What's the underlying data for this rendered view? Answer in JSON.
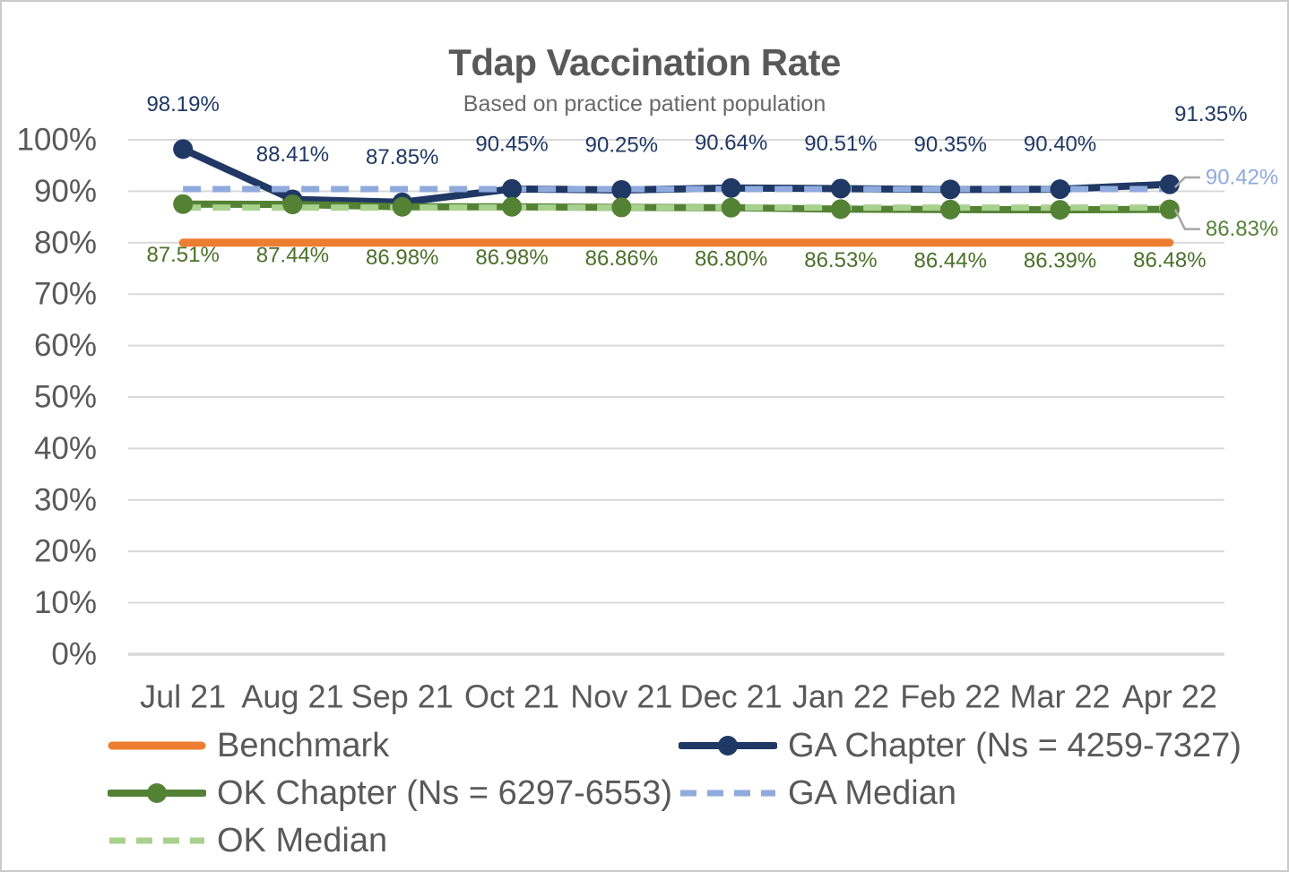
{
  "theme": {
    "background": "#FFFFFF",
    "frame_border": "#C9C9C9",
    "gridline": "#D9D9D9",
    "axis_text": "#595959",
    "title_text": "#595959",
    "subtitle_text": "#696969",
    "legend_text": "#595959",
    "leader_line": "#A6A6A6",
    "benchmark": "#ED7D31",
    "ga_chapter": "#1F3864",
    "ok_chapter": "#548235",
    "ga_median": "#8FAADC",
    "ok_median": "#A9D18E"
  },
  "chart_data": {
    "type": "line",
    "title": "Tdap Vaccination Rate",
    "subtitle": "Based on practice patient population",
    "categories": [
      "Jul 21",
      "Aug 21",
      "Sep 21",
      "Oct 21",
      "Nov 21",
      "Dec 21",
      "Jan 22",
      "Feb 22",
      "Mar 22",
      "Apr 22"
    ],
    "ylim": [
      0,
      100
    ],
    "yticks": [
      0,
      10,
      20,
      30,
      40,
      50,
      60,
      70,
      80,
      90,
      100
    ],
    "ytick_labels": [
      "0%",
      "10%",
      "20%",
      "30%",
      "40%",
      "50%",
      "60%",
      "70%",
      "80%",
      "90%",
      "100%"
    ],
    "grid": true,
    "legend_position": "bottom",
    "series": [
      {
        "name": "Benchmark",
        "values": [
          80,
          80,
          80,
          80,
          80,
          80,
          80,
          80,
          80,
          80
        ],
        "color": "#ED7D31",
        "width": 9,
        "markers": false
      },
      {
        "name": "GA Chapter (Ns = 4259-7327)",
        "values": [
          98.19,
          88.41,
          87.85,
          90.45,
          90.25,
          90.64,
          90.51,
          90.35,
          90.4,
          91.35
        ],
        "color": "#1F3864",
        "width": 8,
        "markers": true,
        "label_side": "above",
        "label_color": "#1F3864",
        "data_labels": [
          "98.19%",
          "88.41%",
          "87.85%",
          "90.45%",
          "90.25%",
          "90.64%",
          "90.51%",
          "90.35%",
          "90.40%",
          "91.35%"
        ],
        "label_offsets": {
          "9": [
            46,
            -28
          ]
        }
      },
      {
        "name": "OK Chapter (Ns = 6297-6553)",
        "values": [
          87.51,
          87.44,
          86.98,
          86.98,
          86.86,
          86.8,
          86.53,
          86.44,
          86.39,
          86.48
        ],
        "color": "#548235",
        "width": 8,
        "markers": true,
        "label_side": "below",
        "label_color": "#4A7029",
        "data_labels": [
          "87.51%",
          "87.44%",
          "86.98%",
          "86.98%",
          "86.86%",
          "86.80%",
          "86.53%",
          "86.44%",
          "86.39%",
          "86.48%"
        ]
      },
      {
        "name": "GA Median",
        "values": [
          90.42,
          90.42,
          90.42,
          90.42,
          90.42,
          90.42,
          90.42,
          90.42,
          90.42,
          90.42
        ],
        "color": "#8FAADC",
        "width": 7,
        "dash": "20 13",
        "markers": false,
        "end_label": "90.42%",
        "end_label_color": "#8FAADC",
        "end_label_side": "up"
      },
      {
        "name": "OK Median",
        "values": [
          86.83,
          86.83,
          86.83,
          86.83,
          86.83,
          86.83,
          86.83,
          86.83,
          86.83,
          86.83
        ],
        "color": "#A9D18E",
        "width": 7,
        "dash": "20 13",
        "markers": false,
        "end_label": "86.83%",
        "end_label_color": "#548235",
        "end_label_side": "down"
      }
    ]
  },
  "legend": {
    "items": [
      {
        "label": "Benchmark",
        "swatch": "line",
        "color": "#ED7D31"
      },
      {
        "label": "GA Chapter (Ns = 4259-7327)",
        "swatch": "line-marker",
        "color": "#1F3864"
      },
      {
        "label": "OK Chapter (Ns = 6297-6553)",
        "swatch": "line-marker",
        "color": "#548235"
      },
      {
        "label": "GA Median",
        "swatch": "dash",
        "color": "#8FAADC"
      },
      {
        "label": "OK Median",
        "swatch": "dash",
        "color": "#A9D18E"
      }
    ]
  }
}
